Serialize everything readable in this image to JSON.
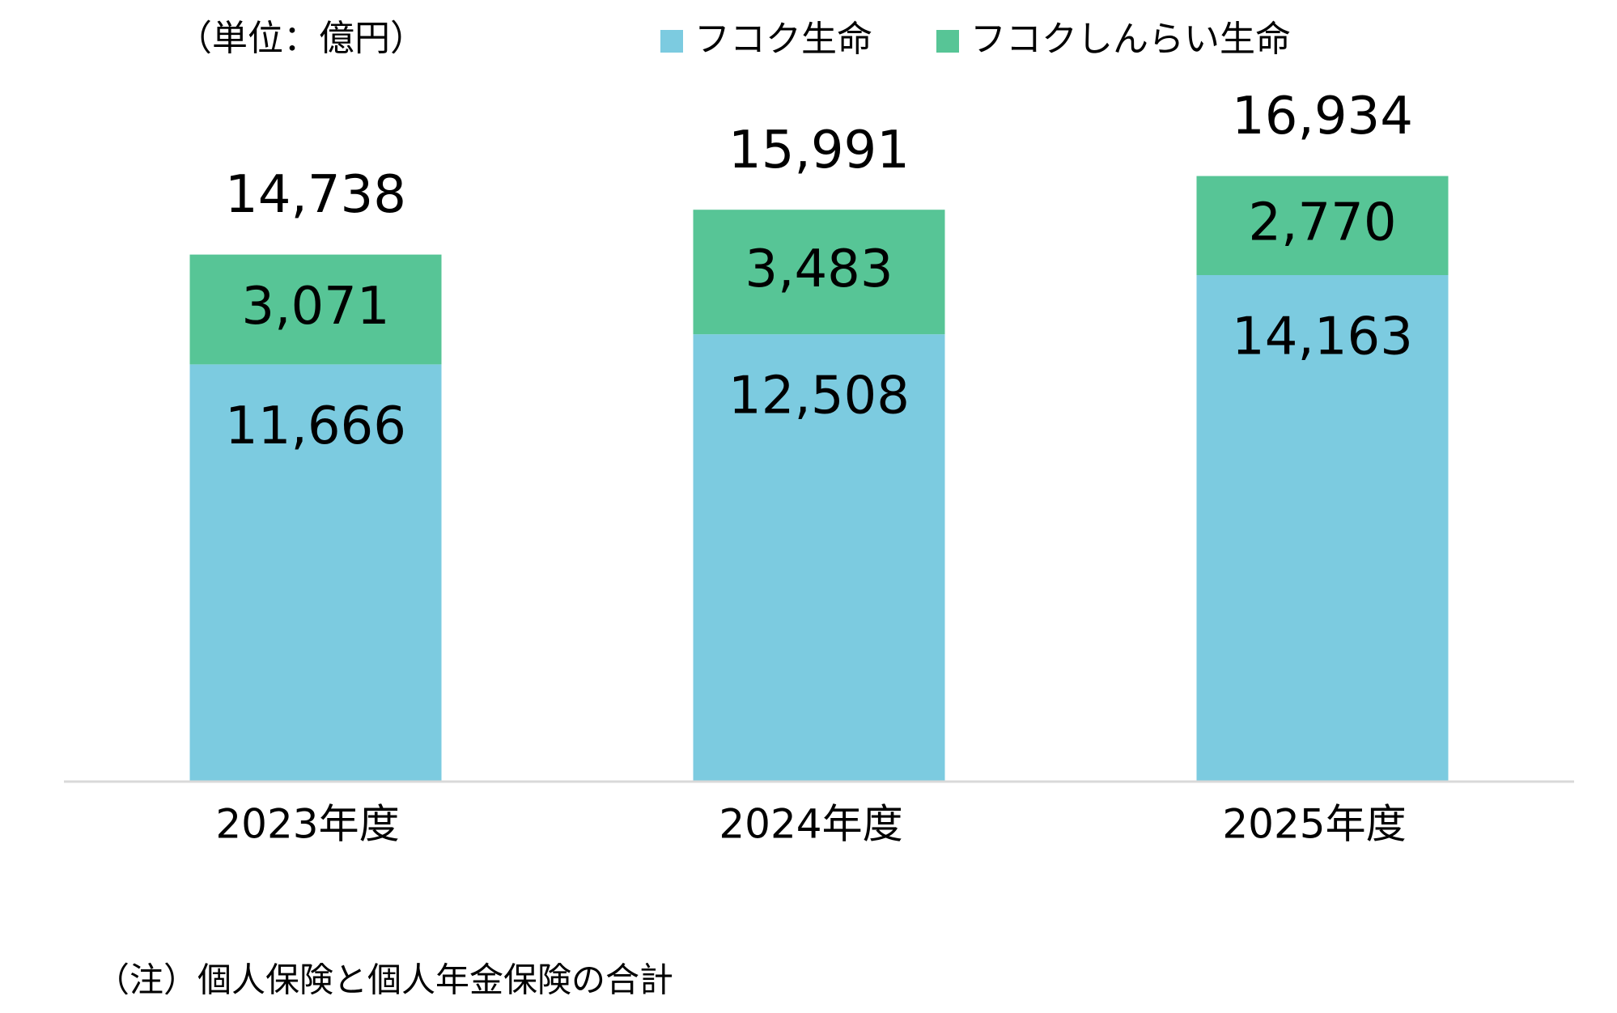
{
  "chart_data": {
    "type": "stacked-bar",
    "unit_label": "（単位：億円）",
    "note": "（注）個人保険と個人年金保険の合計",
    "categories": [
      "2023年度",
      "2024年度",
      "2025年度"
    ],
    "series": [
      {
        "name": "フコク生命",
        "color": "#7ccbe0",
        "values": [
          11666,
          12508,
          14163
        ],
        "value_labels": [
          "11,666",
          "12,508",
          "14,163"
        ]
      },
      {
        "name": "フコクしんらい生命",
        "color": "#57c596",
        "values": [
          3071,
          3483,
          2770
        ],
        "value_labels": [
          "3,071",
          "3,483",
          "2,770"
        ]
      }
    ],
    "totals": {
      "values": [
        14738,
        15991,
        16934
      ],
      "value_labels": [
        "14,738",
        "15,991",
        "16,934"
      ]
    },
    "ylim": [
      0,
      20000
    ],
    "legend": "top"
  }
}
